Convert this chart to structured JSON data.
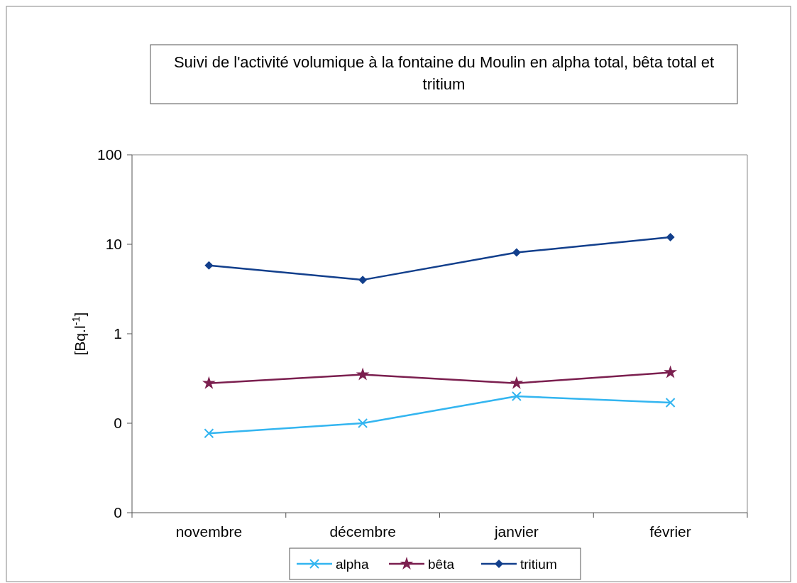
{
  "chart_data": {
    "type": "line",
    "title": "Suivi de l'activité volumique à la fontaine du Moulin en alpha total, bêta total et tritium",
    "ylabel": "[Bq.l$^{-1}$]",
    "categories": [
      "novembre",
      "décembre",
      "janvier",
      "février"
    ],
    "series": [
      {
        "name": "alpha",
        "color": "#33b5f0",
        "marker": "cross",
        "values": [
          0.077,
          0.1,
          0.2,
          0.17
        ]
      },
      {
        "name": "bêta",
        "color": "#7b1f4f",
        "marker": "star",
        "values": [
          0.28,
          0.35,
          0.28,
          0.37
        ]
      },
      {
        "name": "tritium",
        "color": "#123f8c",
        "marker": "diamond",
        "values": [
          5.8,
          4.0,
          8.1,
          12
        ]
      }
    ],
    "log": "y",
    "ylim": [
      0.01,
      100
    ],
    "yticks": [
      {
        "value": 0.01,
        "label": "0"
      },
      {
        "value": 0.1,
        "label": "0"
      },
      1,
      10,
      100
    ],
    "grid": false,
    "legend": "bottom",
    "line_style": "solid"
  }
}
